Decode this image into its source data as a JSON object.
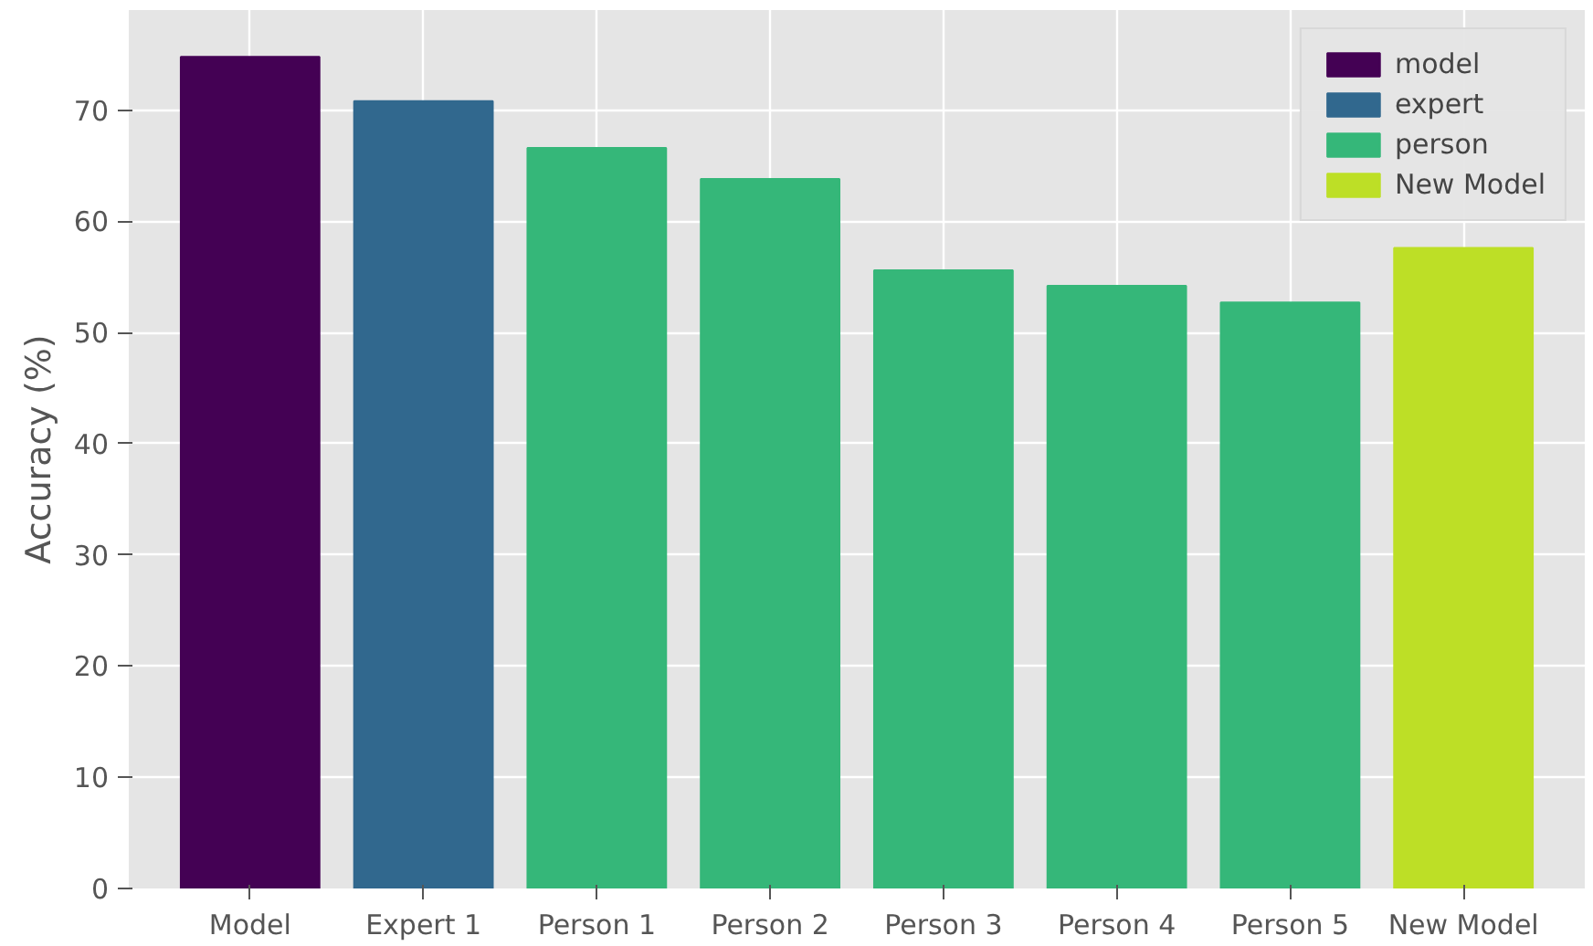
{
  "chart_data": {
    "type": "bar",
    "ylabel": "Accuracy (%)",
    "categories": [
      "Model",
      "Expert 1",
      "Person 1",
      "Person 2",
      "Person 3",
      "Person 4",
      "Person 5",
      "New Model"
    ],
    "series": [
      {
        "name": "model",
        "color": "#440154",
        "values": [
          74.8,
          null,
          null,
          null,
          null,
          null,
          null,
          null
        ]
      },
      {
        "name": "expert",
        "color": "#31688e",
        "values": [
          null,
          70.8,
          null,
          null,
          null,
          null,
          null,
          null
        ]
      },
      {
        "name": "person",
        "color": "#35b779",
        "values": [
          null,
          null,
          66.6,
          63.8,
          55.6,
          54.2,
          52.7,
          null
        ]
      },
      {
        "name": "New Model",
        "color": "#bddf26",
        "values": [
          null,
          null,
          null,
          null,
          null,
          null,
          null,
          57.6
        ]
      }
    ],
    "ylim": [
      0,
      79
    ],
    "yticks": [
      0,
      10,
      20,
      30,
      40,
      50,
      60,
      70
    ],
    "grid": true,
    "legend": "top right"
  }
}
